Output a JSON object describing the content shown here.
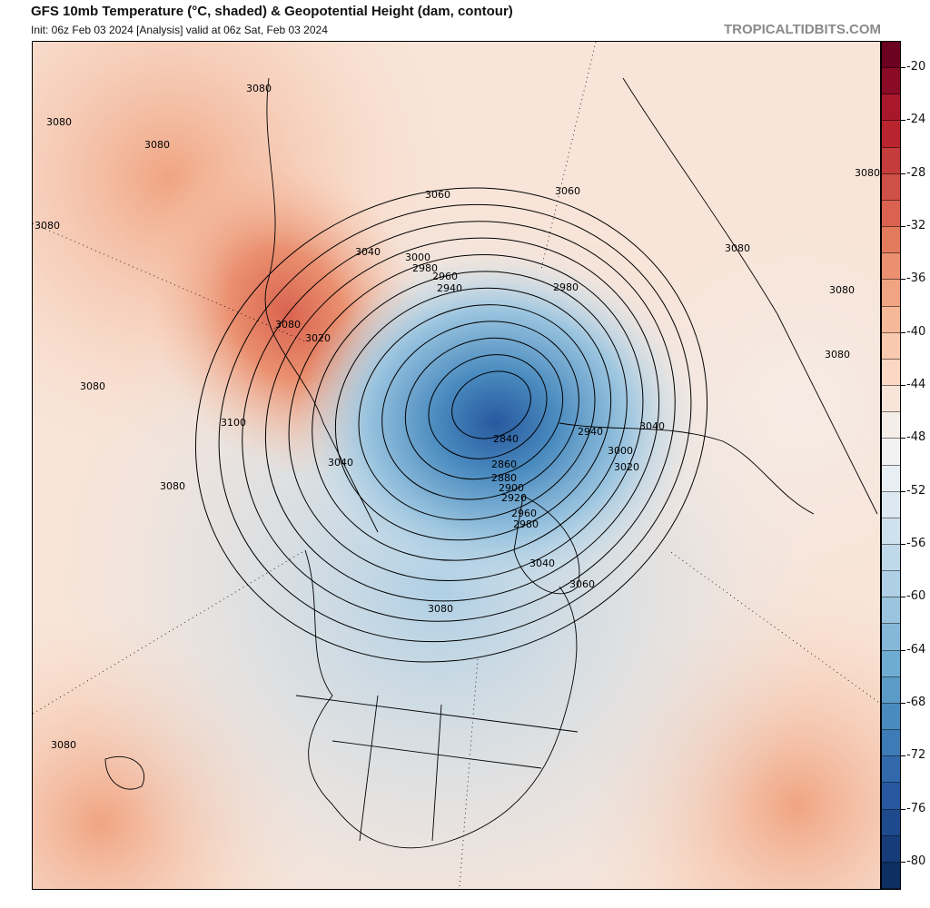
{
  "header": {
    "title": "GFS 10mb Temperature (°C, shaded) & Geopotential Height (dam, contour)",
    "subtitle": "Init: 06z Feb 03 2024   [Analysis]   valid at 06z Sat, Feb 03 2024",
    "brand": "TROPICALTIDBITS.COM"
  },
  "colorbar": {
    "labels": [
      "-20",
      "-24",
      "-28",
      "-32",
      "-36",
      "-40",
      "-44",
      "-48",
      "-52",
      "-56",
      "-60",
      "-64",
      "-68",
      "-72",
      "-76",
      "-80"
    ],
    "colors": [
      "#6b0020",
      "#8a0b25",
      "#a8172b",
      "#b9252f",
      "#c43c3c",
      "#cf5046",
      "#d9634f",
      "#e27b5c",
      "#ea9070",
      "#f0a482",
      "#f5b899",
      "#f8c9ae",
      "#fad8c4",
      "#f8e4d8",
      "#f5ede8",
      "#f2f2f2",
      "#e7eef4",
      "#dce9f1",
      "#cee2ee",
      "#bfd9ea",
      "#aecfe5",
      "#9ac4df",
      "#85b8d8",
      "#6facd1",
      "#5a9bc7",
      "#4a8bbf",
      "#3d7bb6",
      "#3169ac",
      "#27589f",
      "#1e4a8d",
      "#163c79",
      "#0d2f62"
    ]
  },
  "contours": {
    "levels": [
      2840,
      2860,
      2880,
      2900,
      2920,
      2940,
      2960,
      2980,
      3000,
      3020,
      3040,
      3060
    ],
    "labels": [
      "3080",
      "3080",
      "3080",
      "3080",
      "3060",
      "3080",
      "3060",
      "3040",
      "3000",
      "2980",
      "2960",
      "2940",
      "2980",
      "3080",
      "3080",
      "3020",
      "3080",
      "3080",
      "3100",
      "2940",
      "3040",
      "3000",
      "2840",
      "3020",
      "2860",
      "3040",
      "2880",
      "2900",
      "2920",
      "3080",
      "2960",
      "2980",
      "3040",
      "3060",
      "3080",
      "3080",
      "3080"
    ]
  }
}
